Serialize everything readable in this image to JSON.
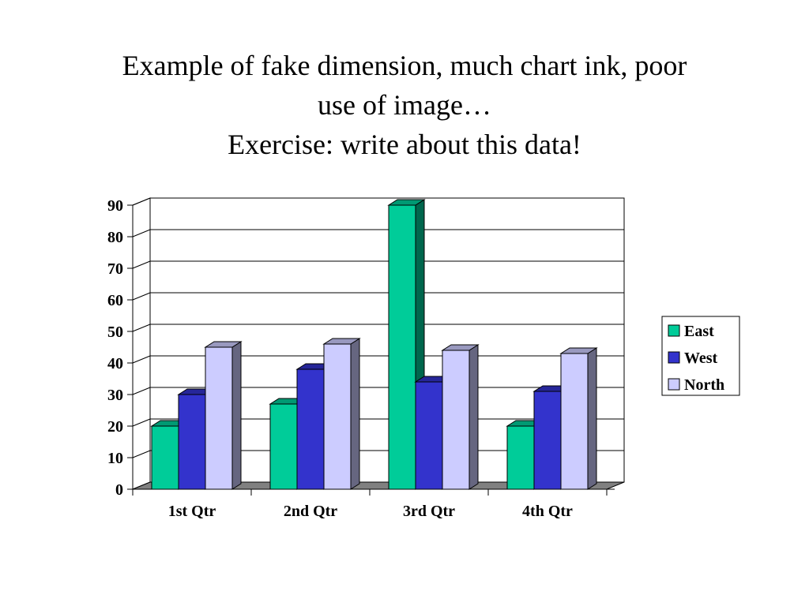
{
  "slide": {
    "title_lines": [
      "Example of fake dimension, much chart ink, poor",
      "use of image…",
      "Exercise: write about this data!"
    ]
  },
  "chart_data": {
    "type": "bar",
    "categories": [
      "1st Qtr",
      "2nd Qtr",
      "3rd Qtr",
      "4th Qtr"
    ],
    "series": [
      {
        "name": "East",
        "values": [
          20,
          27,
          90,
          20
        ],
        "color": "#00CC99"
      },
      {
        "name": "West",
        "values": [
          30,
          38,
          34,
          31
        ],
        "color": "#3333CC"
      },
      {
        "name": "North",
        "values": [
          45,
          46,
          44,
          43
        ],
        "color": "#CCCCFF"
      }
    ],
    "ylim": [
      0,
      90
    ],
    "yticks": [
      0,
      10,
      20,
      30,
      40,
      50,
      60,
      70,
      80,
      90
    ],
    "grid": true,
    "legend": "right",
    "style": "3d"
  }
}
